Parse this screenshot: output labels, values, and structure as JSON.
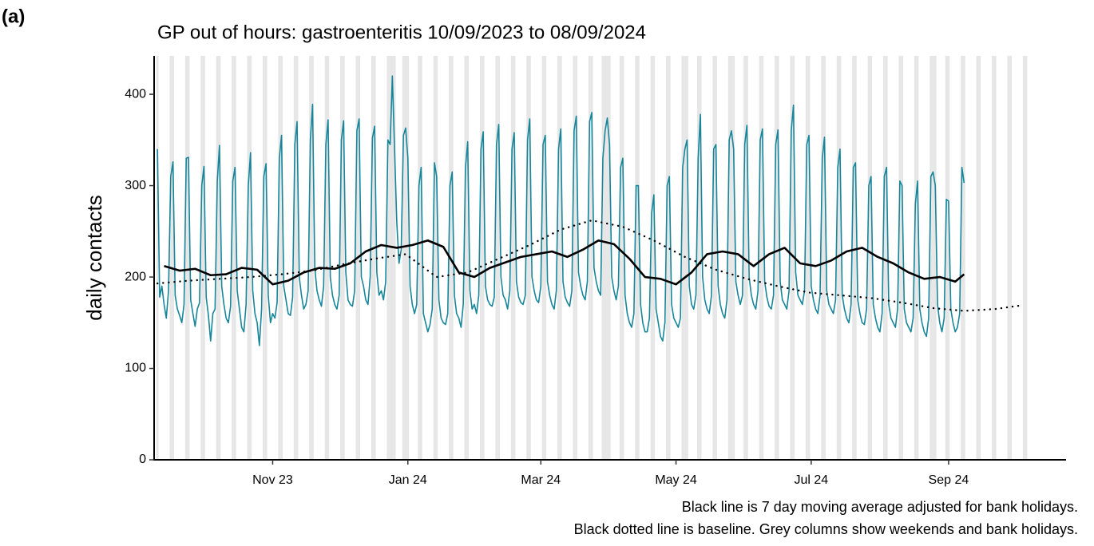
{
  "chart_data": {
    "type": "line",
    "panel_label": "(a)",
    "title": "GP out of hours: gastroenteritis 10/09/2023 to 08/09/2024",
    "y_label": "daily contacts",
    "caption": [
      "Black line is 7 day moving average adjusted for bank holidays.",
      "Black dotted line is baseline. Grey columns show weekends and bank holidays."
    ],
    "xlim": [
      -1.5,
      410
    ],
    "xticks": [
      {
        "value": 52,
        "label": "Nov 23"
      },
      {
        "value": 113,
        "label": "Jan 24"
      },
      {
        "value": 173,
        "label": "Mar 24"
      },
      {
        "value": 234,
        "label": "May 24"
      },
      {
        "value": 295,
        "label": "Jul 24"
      },
      {
        "value": 357,
        "label": "Sep 24"
      }
    ],
    "ylim": [
      0,
      442
    ],
    "yticks": [
      0,
      100,
      200,
      300,
      400
    ],
    "shade_color": "#e6e6e6",
    "shaded_days": [
      0,
      6,
      7,
      13,
      14,
      20,
      21,
      27,
      28,
      34,
      35,
      41,
      42,
      48,
      49,
      55,
      56,
      62,
      63,
      69,
      70,
      76,
      77,
      83,
      84,
      90,
      91,
      97,
      98,
      104,
      105,
      111,
      112,
      118,
      119,
      125,
      126,
      132,
      133,
      139,
      140,
      146,
      147,
      153,
      154,
      160,
      161,
      167,
      168,
      174,
      175,
      181,
      182,
      188,
      189,
      195,
      196,
      202,
      203,
      209,
      210,
      216,
      217,
      223,
      224,
      230,
      231,
      237,
      238,
      244,
      245,
      251,
      252,
      258,
      259,
      265,
      266,
      272,
      273,
      279,
      280,
      286,
      287,
      293,
      294,
      300,
      301,
      307,
      308,
      314,
      315,
      321,
      322,
      328,
      329,
      335,
      336,
      342,
      343,
      349,
      350,
      356,
      357,
      363,
      364,
      370,
      371,
      377,
      378,
      384,
      385,
      391,
      392
    ],
    "bank_holidays": [
      106,
      107,
      113,
      201,
      204,
      239,
      260,
      351
    ],
    "x": [
      0,
      1,
      2,
      3,
      4,
      5,
      6,
      7,
      8,
      9,
      10,
      11,
      12,
      13,
      14,
      15,
      16,
      17,
      18,
      19,
      20,
      21,
      22,
      23,
      24,
      25,
      26,
      27,
      28,
      29,
      30,
      31,
      32,
      33,
      34,
      35,
      36,
      37,
      38,
      39,
      40,
      41,
      42,
      43,
      44,
      45,
      46,
      47,
      48,
      49,
      50,
      51,
      52,
      53,
      54,
      55,
      56,
      57,
      58,
      59,
      60,
      61,
      62,
      63,
      64,
      65,
      66,
      67,
      68,
      69,
      70,
      71,
      72,
      73,
      74,
      75,
      76,
      77,
      78,
      79,
      80,
      81,
      82,
      83,
      84,
      85,
      86,
      87,
      88,
      89,
      90,
      91,
      92,
      93,
      94,
      95,
      96,
      97,
      98,
      99,
      100,
      101,
      102,
      103,
      104,
      105,
      106,
      107,
      108,
      109,
      110,
      111,
      112,
      113,
      114,
      115,
      116,
      117,
      118,
      119,
      120,
      121,
      122,
      123,
      124,
      125,
      126,
      127,
      128,
      129,
      130,
      131,
      132,
      133,
      134,
      135,
      136,
      137,
      138,
      139,
      140,
      141,
      142,
      143,
      144,
      145,
      146,
      147,
      148,
      149,
      150,
      151,
      152,
      153,
      154,
      155,
      156,
      157,
      158,
      159,
      160,
      161,
      162,
      163,
      164,
      165,
      166,
      167,
      168,
      169,
      170,
      171,
      172,
      173,
      174,
      175,
      176,
      177,
      178,
      179,
      180,
      181,
      182,
      183,
      184,
      185,
      186,
      187,
      188,
      189,
      190,
      191,
      192,
      193,
      194,
      195,
      196,
      197,
      198,
      199,
      200,
      201,
      202,
      203,
      204,
      205,
      206,
      207,
      208,
      209,
      210,
      211,
      212,
      213,
      214,
      215,
      216,
      217,
      218,
      219,
      220,
      221,
      222,
      223,
      224,
      225,
      226,
      227,
      228,
      229,
      230,
      231,
      232,
      233,
      234,
      235,
      236,
      237,
      238,
      239,
      240,
      241,
      242,
      243,
      244,
      245,
      246,
      247,
      248,
      249,
      250,
      251,
      252,
      253,
      254,
      255,
      256,
      257,
      258,
      259,
      260,
      261,
      262,
      263,
      264,
      265,
      266,
      267,
      268,
      269,
      270,
      271,
      272,
      273,
      274,
      275,
      276,
      277,
      278,
      279,
      280,
      281,
      282,
      283,
      284,
      285,
      286,
      287,
      288,
      289,
      290,
      291,
      292,
      293,
      294,
      295,
      296,
      297,
      298,
      299,
      300,
      301,
      302,
      303,
      304,
      305,
      306,
      307,
      308,
      309,
      310,
      311,
      312,
      313,
      314,
      315,
      316,
      317,
      318,
      319,
      320,
      321,
      322,
      323,
      324,
      325,
      326,
      327,
      328,
      329,
      330,
      331,
      332,
      333,
      334,
      335,
      336,
      337,
      338,
      339,
      340,
      341,
      342,
      343,
      344,
      345,
      346,
      347,
      348,
      349,
      350,
      351,
      352,
      353,
      354,
      355,
      356,
      357,
      358,
      359,
      360,
      361,
      362,
      363,
      364
    ],
    "series": [
      {
        "color": "#17869b",
        "width": 1.6,
        "values": [
          340,
          178,
          190,
          170,
          155,
          185,
          310,
          326,
          180,
          165,
          158,
          150,
          170,
          330,
          331,
          175,
          160,
          146,
          165,
          172,
          300,
          321,
          178,
          158,
          130,
          160,
          165,
          305,
          344,
          190,
          170,
          155,
          150,
          168,
          305,
          320,
          185,
          165,
          145,
          140,
          170,
          300,
          336,
          185,
          160,
          150,
          125,
          165,
          310,
          324,
          180,
          150,
          160,
          155,
          172,
          330,
          355,
          190,
          175,
          160,
          158,
          178,
          345,
          370,
          200,
          180,
          165,
          170,
          185,
          350,
          389,
          210,
          185,
          175,
          168,
          190,
          345,
          372,
          200,
          180,
          170,
          165,
          180,
          350,
          371,
          205,
          175,
          170,
          168,
          185,
          360,
          373,
          200,
          190,
          175,
          170,
          200,
          352,
          365,
          205,
          180,
          185,
          175,
          195,
          350,
          345,
          420,
          340,
          260,
          215,
          230,
          355,
          363,
          330,
          190,
          170,
          160,
          170,
          300,
          320,
          160,
          150,
          140,
          148,
          165,
          325,
          310,
          175,
          155,
          150,
          148,
          160,
          300,
          315,
          180,
          160,
          155,
          145,
          170,
          320,
          348,
          185,
          165,
          170,
          160,
          180,
          340,
          359,
          190,
          175,
          170,
          168,
          178,
          345,
          367,
          200,
          180,
          175,
          165,
          185,
          340,
          358,
          195,
          178,
          172,
          170,
          180,
          350,
          373,
          200,
          185,
          175,
          172,
          190,
          345,
          355,
          195,
          180,
          170,
          165,
          185,
          340,
          362,
          195,
          178,
          172,
          168,
          185,
          360,
          376,
          205,
          190,
          180,
          175,
          195,
          370,
          380,
          210,
          195,
          185,
          180,
          330,
          360,
          374,
          345,
          200,
          185,
          175,
          190,
          320,
          330,
          180,
          160,
          150,
          145,
          160,
          300,
          300,
          170,
          150,
          140,
          140,
          155,
          270,
          290,
          165,
          150,
          135,
          130,
          150,
          300,
          310,
          170,
          155,
          150,
          145,
          155,
          320,
          340,
          350,
          190,
          170,
          165,
          180,
          330,
          378,
          200,
          175,
          165,
          160,
          180,
          340,
          345,
          190,
          170,
          160,
          155,
          175,
          350,
          360,
          340,
          195,
          180,
          170,
          180,
          345,
          366,
          200,
          180,
          170,
          165,
          185,
          350,
          362,
          195,
          178,
          168,
          165,
          180,
          345,
          361,
          195,
          175,
          170,
          165,
          185,
          360,
          388,
          205,
          180,
          175,
          170,
          185,
          345,
          355,
          190,
          175,
          165,
          160,
          180,
          330,
          353,
          185,
          170,
          165,
          160,
          175,
          320,
          340,
          180,
          165,
          155,
          150,
          170,
          320,
          325,
          175,
          160,
          150,
          148,
          165,
          300,
          310,
          170,
          155,
          145,
          140,
          160,
          310,
          320,
          170,
          155,
          150,
          145,
          165,
          305,
          300,
          165,
          150,
          145,
          140,
          155,
          280,
          305,
          165,
          150,
          140,
          135,
          155,
          310,
          315,
          300,
          170,
          150,
          140,
          155,
          285,
          283,
          165,
          150,
          140,
          145,
          160,
          320,
          303
        ]
      },
      {
        "color": "#000000",
        "width": 2.6,
        "x": [
          3,
          10,
          17,
          24,
          31,
          38,
          45,
          52,
          59,
          66,
          73,
          80,
          87,
          94,
          101,
          108,
          115,
          122,
          129,
          136,
          143,
          150,
          157,
          164,
          171,
          178,
          185,
          192,
          199,
          206,
          213,
          220,
          227,
          234,
          241,
          248,
          255,
          262,
          269,
          276,
          283,
          290,
          297,
          304,
          311,
          318,
          325,
          332,
          339,
          346,
          353,
          360,
          364
        ],
        "values": [
          212,
          207,
          209,
          202,
          203,
          210,
          208,
          192,
          196,
          205,
          210,
          209,
          215,
          228,
          235,
          232,
          235,
          240,
          233,
          205,
          200,
          210,
          216,
          222,
          225,
          228,
          222,
          230,
          240,
          236,
          220,
          200,
          198,
          192,
          205,
          225,
          228,
          225,
          212,
          225,
          232,
          215,
          212,
          218,
          228,
          232,
          222,
          215,
          205,
          198,
          200,
          195,
          203
        ]
      },
      {
        "color": "#000000",
        "width": 2.4,
        "dotted": true,
        "x": [
          0,
          14,
          28,
          42,
          56,
          70,
          84,
          98,
          112,
          126,
          140,
          154,
          168,
          182,
          196,
          210,
          224,
          238,
          252,
          266,
          280,
          294,
          308,
          322,
          336,
          350,
          364,
          378,
          390
        ],
        "values": [
          193,
          196,
          198,
          200,
          203,
          207,
          214,
          220,
          225,
          200,
          205,
          220,
          235,
          252,
          262,
          255,
          240,
          222,
          208,
          198,
          190,
          183,
          180,
          177,
          172,
          166,
          163,
          165,
          169
        ]
      }
    ]
  }
}
